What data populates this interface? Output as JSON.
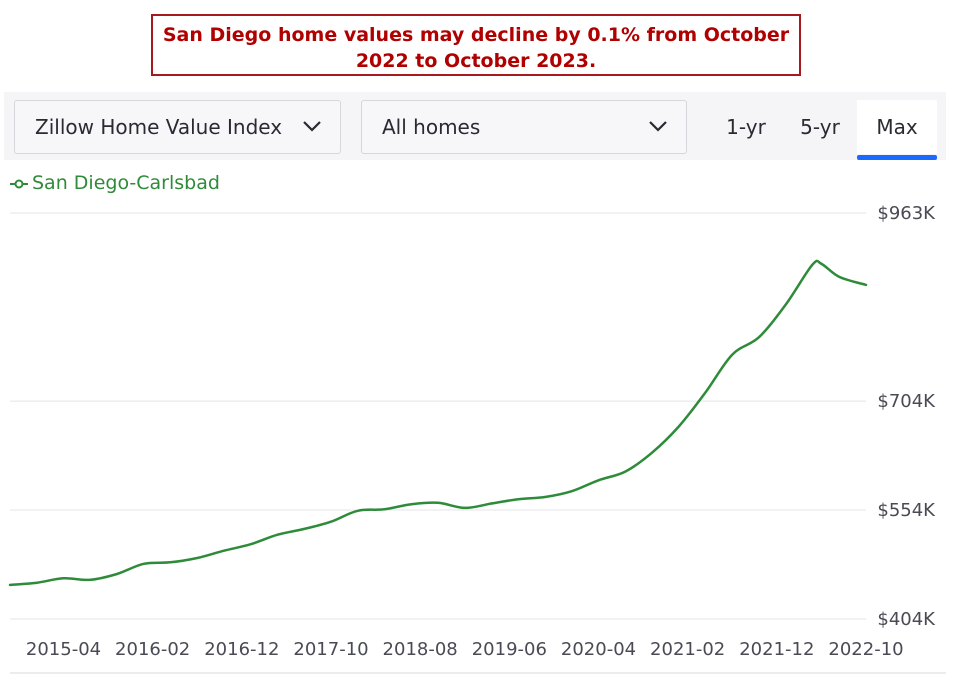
{
  "headline": "San Diego home values may decline by 0.1% from October 2022 to October 2023.",
  "toolbar": {
    "index_select": "Zillow Home Value Index",
    "home_type_select": "All homes",
    "ranges": [
      "1-yr",
      "5-yr",
      "Max"
    ],
    "active_range": "Max"
  },
  "colors": {
    "series": "#2e8b3a",
    "headline": "#b00000",
    "active_tab": "#1a6aff"
  },
  "chart_data": {
    "type": "line",
    "title": "",
    "xlabel": "",
    "ylabel": "",
    "grid": true,
    "legend_position": "top-left",
    "yticks": [
      {
        "value": 404000,
        "label": "$404K"
      },
      {
        "value": 554000,
        "label": "$554K"
      },
      {
        "value": 704000,
        "label": "$704K"
      },
      {
        "value": 963000,
        "label": "$963K"
      }
    ],
    "xticks": [
      "2015-04",
      "2016-02",
      "2016-12",
      "2017-10",
      "2018-08",
      "2019-06",
      "2020-04",
      "2021-02",
      "2021-12",
      "2022-10"
    ],
    "ylim": [
      404000,
      963000
    ],
    "x_range": [
      "2014-10",
      "2022-10"
    ],
    "series": [
      {
        "name": "San Diego-Carlsbad",
        "x": [
          "2014-10",
          "2015-01",
          "2015-04",
          "2015-07",
          "2015-10",
          "2016-01",
          "2016-04",
          "2016-07",
          "2016-10",
          "2017-01",
          "2017-04",
          "2017-07",
          "2017-10",
          "2018-01",
          "2018-04",
          "2018-07",
          "2018-10",
          "2019-01",
          "2019-04",
          "2019-07",
          "2019-10",
          "2020-01",
          "2020-04",
          "2020-07",
          "2020-10",
          "2021-01",
          "2021-04",
          "2021-07",
          "2021-10",
          "2022-01",
          "2022-04",
          "2022-05",
          "2022-07",
          "2022-10"
        ],
        "values": [
          451000,
          454000,
          460000,
          458000,
          466000,
          480000,
          482000,
          488000,
          498000,
          507000,
          520000,
          528000,
          538000,
          553000,
          555000,
          562000,
          564000,
          557000,
          563000,
          569000,
          572000,
          580000,
          595000,
          607000,
          633000,
          669000,
          716000,
          768000,
          792000,
          837000,
          892000,
          893000,
          875000,
          864000
        ]
      }
    ]
  }
}
